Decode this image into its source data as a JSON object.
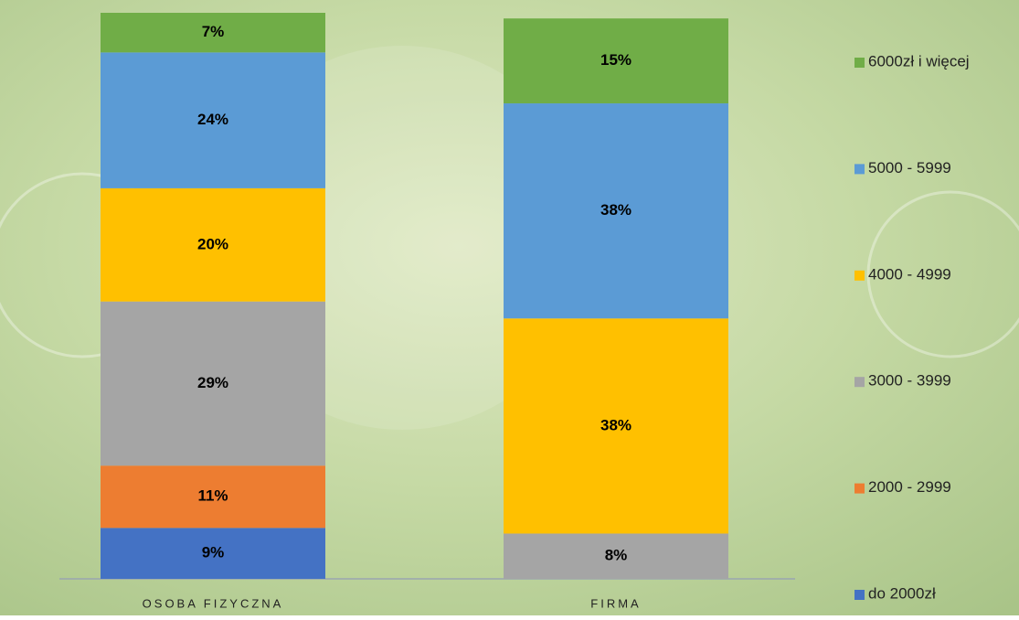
{
  "chart_data": {
    "type": "stacked_bar",
    "categories": [
      "OSOBA FIZYCZNA",
      "FIRMA"
    ],
    "series": [
      {
        "name": "do 2000zł",
        "color": "#4472c4",
        "values": [
          9,
          null
        ],
        "value_labels": [
          "9%",
          null
        ]
      },
      {
        "name": "2000 - 2999",
        "color": "#ed7d31",
        "values": [
          11,
          null
        ],
        "value_labels": [
          "11%",
          null
        ]
      },
      {
        "name": "3000 - 3999",
        "color": "#a5a5a5",
        "values": [
          29,
          8
        ],
        "value_labels": [
          "29%",
          "8%"
        ]
      },
      {
        "name": "4000 - 4999",
        "color": "#ffc000",
        "values": [
          20,
          38
        ],
        "value_labels": [
          "20%",
          "38%"
        ]
      },
      {
        "name": "5000 - 5999",
        "color": "#5b9bd5",
        "values": [
          24,
          38
        ],
        "value_labels": [
          "24%",
          "38%"
        ]
      },
      {
        "name": "6000zł i więcej",
        "color": "#70ad47",
        "values": [
          7,
          15
        ],
        "value_labels": [
          "7%",
          "15%"
        ]
      }
    ],
    "ylim": [
      0,
      100
    ],
    "legend": "right"
  }
}
